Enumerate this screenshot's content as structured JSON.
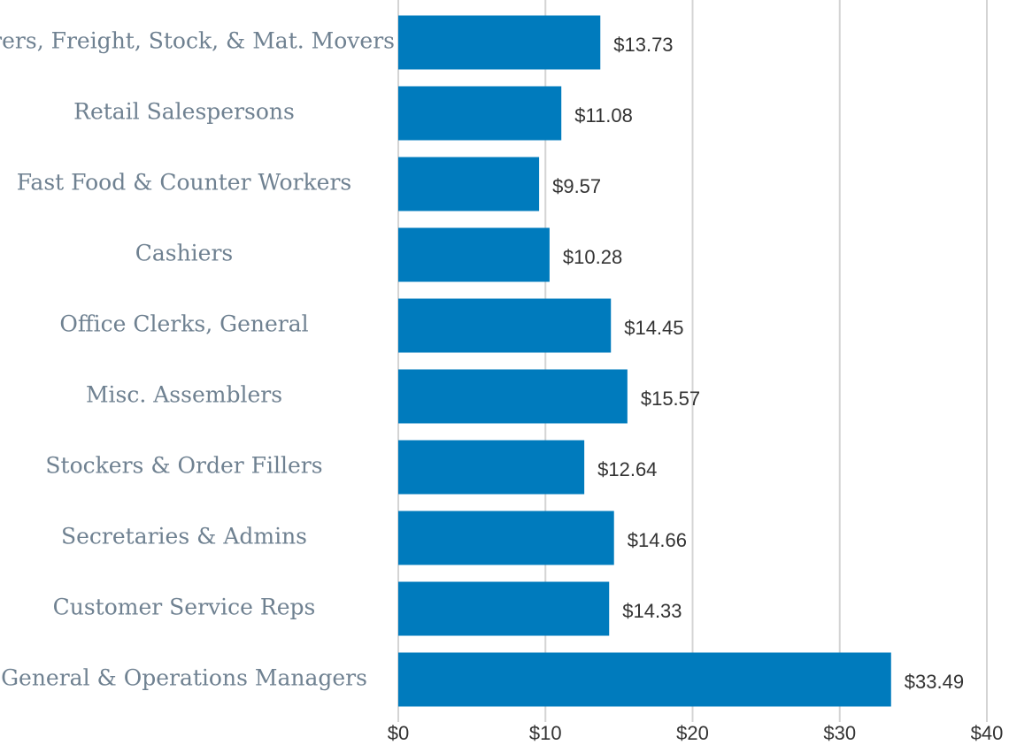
{
  "chart_data": {
    "type": "barh",
    "categories": [
      "borers, Freight, Stock, & Mat. Movers",
      "Retail Salespersons",
      "Fast Food & Counter Workers",
      "Cashiers",
      "Office Clerks, General",
      "Misc. Assemblers",
      "Stockers & Order Fillers",
      "Secretaries & Admins",
      "Customer Service Reps",
      "General & Operations Managers"
    ],
    "values": [
      13.73,
      11.08,
      9.57,
      10.28,
      14.45,
      15.57,
      12.64,
      14.66,
      14.33,
      33.49
    ],
    "value_labels": [
      "$13.73",
      "$11.08",
      "$9.57",
      "$10.28",
      "$14.45",
      "$15.57",
      "$12.64",
      "$14.66",
      "$14.33",
      "$33.49"
    ],
    "color": "#007bbd",
    "xlim": [
      0,
      40
    ],
    "xticks": [
      {
        "value": 0,
        "label": "$0"
      },
      {
        "value": 10,
        "label": "$10"
      },
      {
        "value": 20,
        "label": "$20"
      },
      {
        "value": 30,
        "label": "$30"
      },
      {
        "value": 40,
        "label": "$40"
      }
    ],
    "grid": true
  }
}
